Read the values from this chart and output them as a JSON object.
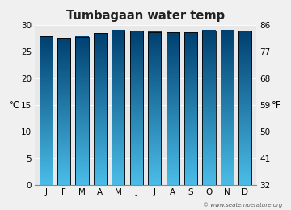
{
  "title": "Tumbagaan water temp",
  "months": [
    "J",
    "F",
    "M",
    "A",
    "M",
    "J",
    "J",
    "A",
    "S",
    "O",
    "N",
    "D"
  ],
  "values_c": [
    27.9,
    27.6,
    27.8,
    28.5,
    29.0,
    28.9,
    28.7,
    28.6,
    28.6,
    29.0,
    29.0,
    28.9
  ],
  "ylim_c": [
    0,
    30
  ],
  "yticks_c": [
    0,
    5,
    10,
    15,
    20,
    25,
    30
  ],
  "yticks_f": [
    32,
    41,
    50,
    59,
    68,
    77,
    86
  ],
  "ylabel_left": "°C",
  "ylabel_right": "°F",
  "bar_color_top": "#4bbde8",
  "bar_color_bottom": "#004070",
  "bar_border_color": "#000000",
  "background_color": "#f0f0f0",
  "plot_bg_color": "#e8e8e8",
  "title_fontsize": 10.5,
  "tick_fontsize": 7.5,
  "label_fontsize": 8.5,
  "watermark": "© www.seatemperature.org",
  "bar_width": 0.72
}
